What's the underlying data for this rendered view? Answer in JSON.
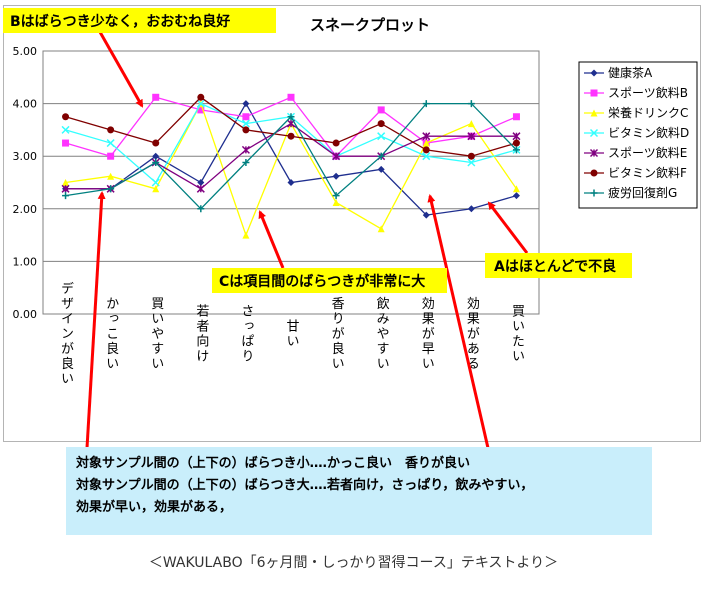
{
  "chart_data": {
    "type": "line",
    "title": "スネークプロット",
    "categories": [
      "デザインが良い",
      "かっこ良い",
      "買いやすい",
      "若者向け",
      "さっぱり",
      "甘い",
      "香りが良い",
      "飲みやすい",
      "効果が早い",
      "効果がある",
      "買いたい"
    ],
    "y_ticks": [
      "0.00",
      "1.00",
      "2.00",
      "3.00",
      "4.00",
      "5.00"
    ],
    "ylim": [
      0,
      5
    ],
    "grid": true,
    "legend_position": "right",
    "series": [
      {
        "name": "健康茶A",
        "color": "#1f2f8f",
        "marker": "diamond",
        "values": [
          2.38,
          2.38,
          3.0,
          2.5,
          4.0,
          2.5,
          2.62,
          2.75,
          1.88,
          2.0,
          2.25
        ]
      },
      {
        "name": "スポーツ飲料B",
        "color": "#ff33ff",
        "marker": "square",
        "values": [
          3.25,
          3.0,
          4.12,
          3.88,
          3.75,
          4.12,
          3.0,
          3.88,
          3.25,
          3.38,
          3.75
        ]
      },
      {
        "name": "栄養ドリンクC",
        "color": "#ffff00",
        "marker": "triangle",
        "values": [
          2.5,
          2.62,
          2.38,
          4.0,
          1.5,
          3.62,
          2.12,
          1.62,
          3.25,
          3.62,
          2.38
        ]
      },
      {
        "name": "ビタミン飲料D",
        "color": "#33ffff",
        "marker": "x",
        "values": [
          3.5,
          3.25,
          2.5,
          4.0,
          3.62,
          3.75,
          3.0,
          3.38,
          3.0,
          2.88,
          3.12
        ]
      },
      {
        "name": "スポーツ飲料E",
        "color": "#800080",
        "marker": "star",
        "values": [
          2.38,
          2.38,
          2.88,
          2.38,
          3.12,
          3.62,
          3.0,
          3.0,
          3.38,
          3.38,
          3.38
        ]
      },
      {
        "name": "ビタミン飲料F",
        "color": "#800000",
        "marker": "circle",
        "values": [
          3.75,
          3.5,
          3.25,
          4.12,
          3.5,
          3.38,
          3.25,
          3.62,
          3.12,
          3.0,
          3.25
        ]
      },
      {
        "name": "疲労回復剤G",
        "color": "#008080",
        "marker": "plus",
        "values": [
          2.25,
          2.38,
          2.88,
          2.0,
          2.88,
          3.75,
          2.25,
          3.0,
          4.0,
          4.0,
          3.12
        ]
      }
    ]
  },
  "annotations": {
    "b_label": "Bはばらつき少なく，おおむね良好",
    "c_label": "Cは項目間のばらつきが非常に大",
    "a_label": "Aはほとんどで不良",
    "arrow_color": "#ff0000"
  },
  "summary": {
    "line1": "対象サンプル間の（上下の）ばらつき小‥‥かっこ良い　香りが良い",
    "line2": "対象サンプル間の（上下の）ばらつき大‥‥若者向け，さっぱり，飲みやすい，",
    "line3": "効果が早い，効果がある，"
  },
  "caption": "＜WAKULABO「6ヶ月間・しっかり習得コース」テキストより＞"
}
